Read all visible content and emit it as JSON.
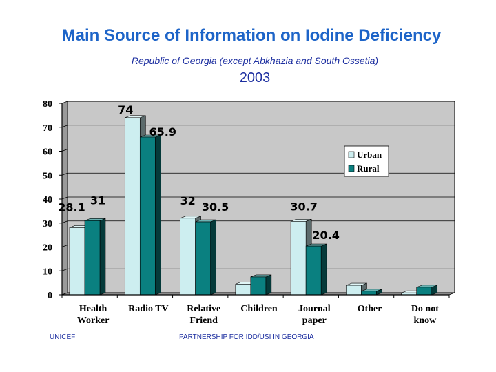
{
  "header": {
    "title": "Main Source of Information on Iodine Deficiency",
    "subtitle": "Republic of Georgia (except Abkhazia and South Ossetia)",
    "year": "2003"
  },
  "footer": {
    "left": "UNICEF",
    "right": "PARTNERSHIP FOR IDD/USI IN GEORGIA"
  },
  "colors": {
    "urban": "#cdeef0",
    "rural": "#0a8080",
    "plot_bg": "#c8c8c8",
    "label": "#000000"
  },
  "chart_data": {
    "type": "bar",
    "categories": [
      [
        "Health",
        "Worker"
      ],
      [
        "Radio TV"
      ],
      [
        "Relative",
        "Friend"
      ],
      [
        "Children"
      ],
      [
        "Journal",
        "paper"
      ],
      [
        "Other"
      ],
      [
        "Do not",
        "know"
      ]
    ],
    "series": [
      {
        "name": "Urban",
        "values": [
          28.1,
          74,
          32,
          4.5,
          30.7,
          4.0,
          0.8
        ]
      },
      {
        "name": "Rural",
        "values": [
          31,
          65.9,
          30.5,
          7.5,
          20.4,
          1.5,
          3.2
        ]
      }
    ],
    "data_labels": [
      {
        "category": 0,
        "series": 0,
        "text": "28.1"
      },
      {
        "category": 0,
        "series": 1,
        "text": "31"
      },
      {
        "category": 1,
        "series": 0,
        "text": "74"
      },
      {
        "category": 1,
        "series": 1,
        "text": "65.9"
      },
      {
        "category": 2,
        "series": 0,
        "text": "32"
      },
      {
        "category": 2,
        "series": 1,
        "text": "30.5"
      },
      {
        "category": 4,
        "series": 0,
        "text": "30.7"
      },
      {
        "category": 4,
        "series": 1,
        "text": "20.4"
      }
    ],
    "yticks": [
      "0",
      "10",
      "20",
      "30",
      "40",
      "50",
      "60",
      "70",
      "80"
    ],
    "ylim": [
      0,
      80
    ],
    "grid": true,
    "legend": "top-right",
    "xlabel": "",
    "ylabel": ""
  }
}
